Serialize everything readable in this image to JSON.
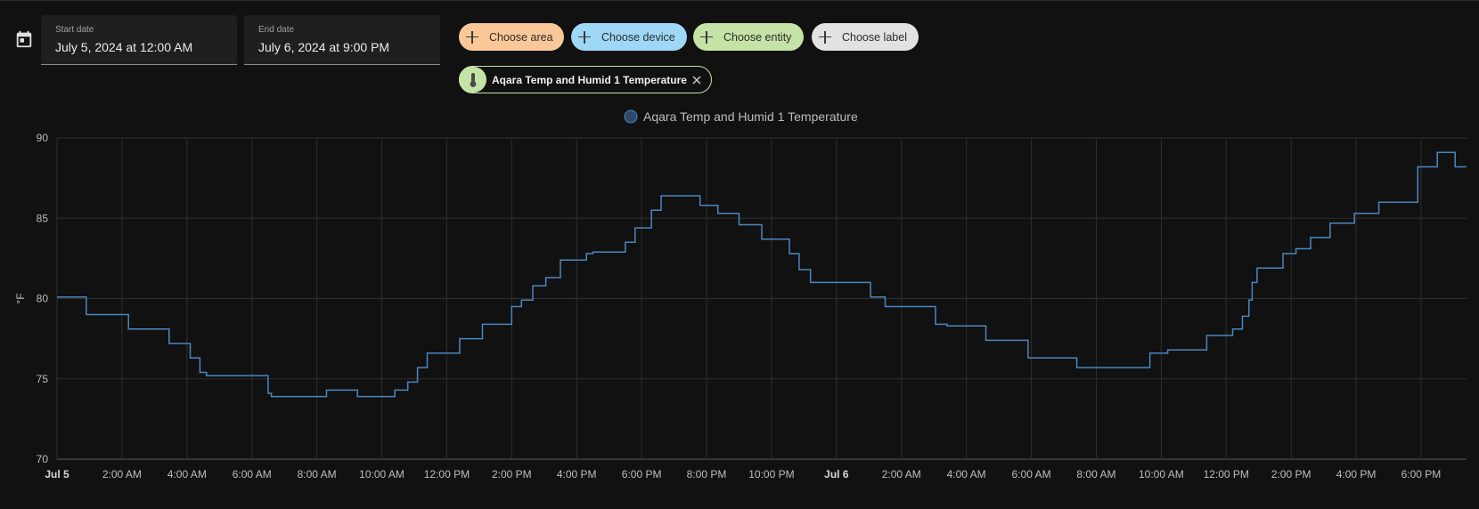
{
  "date_range": {
    "start_label": "Start date",
    "start_value": "July 5, 2024 at 12:00 AM",
    "end_label": "End date",
    "end_value": "July 6, 2024 at 9:00 PM"
  },
  "target_picker": {
    "area_label": "Choose area",
    "device_label": "Choose device",
    "entity_label": "Choose entity",
    "label_label": "Choose label"
  },
  "selected_entity": {
    "name": "Aqara Temp and Humid 1 Temperature",
    "icon": "thermometer-icon"
  },
  "colors": {
    "background": "#111111",
    "line": "#4a86c0",
    "area_chip": "#fac898",
    "device_chip": "#9fd8f7",
    "entity_chip": "#c5e3a6",
    "label_chip": "#e2e2e2"
  },
  "chart_data": {
    "type": "line",
    "step": true,
    "legend": "Aqara Temp and Humid 1 Temperature",
    "legend_position": "top-center",
    "ylabel": "°F",
    "xlabel": "",
    "ylim": [
      70,
      90
    ],
    "yticks": [
      70,
      75,
      80,
      85,
      90
    ],
    "grid": true,
    "x_unit": "hours from Jul 5 12:00 AM",
    "xlim": [
      0,
      43.4
    ],
    "xticks": [
      {
        "x": 0,
        "label": "Jul 5",
        "bold": true
      },
      {
        "x": 2,
        "label": "2:00 AM"
      },
      {
        "x": 4,
        "label": "4:00 AM"
      },
      {
        "x": 6,
        "label": "6:00 AM"
      },
      {
        "x": 8,
        "label": "8:00 AM"
      },
      {
        "x": 10,
        "label": "10:00 AM"
      },
      {
        "x": 12,
        "label": "12:00 PM"
      },
      {
        "x": 14,
        "label": "2:00 PM"
      },
      {
        "x": 16,
        "label": "4:00 PM"
      },
      {
        "x": 18,
        "label": "6:00 PM"
      },
      {
        "x": 20,
        "label": "8:00 PM"
      },
      {
        "x": 22,
        "label": "10:00 PM"
      },
      {
        "x": 24,
        "label": "Jul 6",
        "bold": true
      },
      {
        "x": 26,
        "label": "2:00 AM"
      },
      {
        "x": 28,
        "label": "4:00 AM"
      },
      {
        "x": 30,
        "label": "6:00 AM"
      },
      {
        "x": 32,
        "label": "8:00 AM"
      },
      {
        "x": 34,
        "label": "10:00 AM"
      },
      {
        "x": 36,
        "label": "12:00 PM"
      },
      {
        "x": 38,
        "label": "2:00 PM"
      },
      {
        "x": 40,
        "label": "4:00 PM"
      },
      {
        "x": 42,
        "label": "6:00 PM"
      }
    ],
    "series": [
      {
        "name": "Aqara Temp and Humid 1 Temperature",
        "points": [
          [
            0,
            80.1
          ],
          [
            0.9,
            79.0
          ],
          [
            2.2,
            78.1
          ],
          [
            3.45,
            77.2
          ],
          [
            4.1,
            76.3
          ],
          [
            4.4,
            75.4
          ],
          [
            4.6,
            75.2
          ],
          [
            6.5,
            74.1
          ],
          [
            6.6,
            73.9
          ],
          [
            8.3,
            74.3
          ],
          [
            9.25,
            73.9
          ],
          [
            10.4,
            74.3
          ],
          [
            10.8,
            74.8
          ],
          [
            11.1,
            75.7
          ],
          [
            11.4,
            76.6
          ],
          [
            12.4,
            77.5
          ],
          [
            13.1,
            78.4
          ],
          [
            14.0,
            79.5
          ],
          [
            14.3,
            79.9
          ],
          [
            14.65,
            80.8
          ],
          [
            15.05,
            81.3
          ],
          [
            15.5,
            82.4
          ],
          [
            16.3,
            82.8
          ],
          [
            16.5,
            82.9
          ],
          [
            17.5,
            83.5
          ],
          [
            17.8,
            84.4
          ],
          [
            18.3,
            85.5
          ],
          [
            18.6,
            86.4
          ],
          [
            19.8,
            85.8
          ],
          [
            20.35,
            85.3
          ],
          [
            21.0,
            84.6
          ],
          [
            21.7,
            83.7
          ],
          [
            22.55,
            82.8
          ],
          [
            22.85,
            81.8
          ],
          [
            23.2,
            81.0
          ],
          [
            25.05,
            80.1
          ],
          [
            25.5,
            79.5
          ],
          [
            27.05,
            78.4
          ],
          [
            27.4,
            78.3
          ],
          [
            28.6,
            77.4
          ],
          [
            29.9,
            76.3
          ],
          [
            31.4,
            75.7
          ],
          [
            33.65,
            76.6
          ],
          [
            34.2,
            76.8
          ],
          [
            35.4,
            77.7
          ],
          [
            36.2,
            78.1
          ],
          [
            36.5,
            78.9
          ],
          [
            36.7,
            79.9
          ],
          [
            36.8,
            81.0
          ],
          [
            36.95,
            81.9
          ],
          [
            37.75,
            82.8
          ],
          [
            38.15,
            83.1
          ],
          [
            38.6,
            83.8
          ],
          [
            39.2,
            84.7
          ],
          [
            39.95,
            85.3
          ],
          [
            40.7,
            86.0
          ],
          [
            41.9,
            88.2
          ],
          [
            42.5,
            89.1
          ],
          [
            43.05,
            88.2
          ],
          [
            43.4,
            88.2
          ]
        ]
      }
    ]
  }
}
